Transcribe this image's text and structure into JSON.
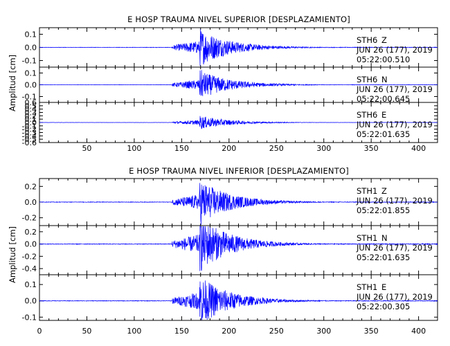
{
  "chart_data": [
    {
      "type": "line",
      "title": "E HOSP TRAUMA NIVEL SUPERIOR [DESPLAZAMIENTO]",
      "ylabel": "Amplitud [cm]",
      "xlim": [
        0,
        420
      ],
      "x_ticks": [
        "50",
        "100",
        "150",
        "200",
        "250",
        "300",
        "350",
        "400"
      ],
      "series_color": "#0000ff",
      "panels": [
        {
          "name": "STH6 Z",
          "station": "STH6",
          "component": "Z",
          "date": "JUN 26 (177), 2019",
          "time": "05:22:00.510",
          "ylim": [
            -0.15,
            0.15
          ],
          "y_ticks": [
            "0.1",
            "0.0",
            "-0.1"
          ],
          "onset_s": 140,
          "peak_s": 170,
          "peak_amplitude": 0.14
        },
        {
          "name": "STH6 N",
          "station": "STH6",
          "component": "N",
          "date": "JUN 26 (177), 2019",
          "time": "05:22:00.645",
          "ylim": [
            -0.15,
            0.15
          ],
          "y_ticks": [
            "0.1",
            "0.0",
            "-0.1"
          ],
          "onset_s": 140,
          "peak_s": 170,
          "peak_amplitude": 0.12
        },
        {
          "name": "STH6 E",
          "station": "STH6",
          "component": "E",
          "date": "JUN 26 (177), 2019",
          "time": "05:22:01.635",
          "ylim": [
            -0.6,
            0.6
          ],
          "y_ticks": [
            "0.6",
            "0.5",
            "0.4",
            "0.3",
            "0.2",
            "0.1",
            "0.0",
            "-0.1",
            "-0.2",
            "-0.3",
            "-0.4",
            "-0.5",
            "-0.6"
          ],
          "onset_s": 140,
          "peak_s": 170,
          "peak_amplitude": 0.2
        }
      ]
    },
    {
      "type": "line",
      "title": "E HOSP TRAUMA NIVEL INFERIOR [DESPLAZAMIENTO]",
      "ylabel": "Amplitud [cm]",
      "xlim": [
        0,
        420
      ],
      "x_ticks": [
        "0",
        "50",
        "100",
        "150",
        "200",
        "250",
        "300",
        "350",
        "400"
      ],
      "series_color": "#0000ff",
      "panels": [
        {
          "name": "STH1 Z",
          "station": "STH1",
          "component": "Z",
          "date": "JUN 26 (177), 2019",
          "time": "05:22:01.855",
          "ylim": [
            -0.3,
            0.3
          ],
          "y_ticks": [
            "0.2",
            "0.0",
            "-0.2"
          ],
          "onset_s": 140,
          "peak_s": 170,
          "peak_amplitude": 0.28
        },
        {
          "name": "STH1 N",
          "station": "STH1",
          "component": "N",
          "date": "JUN 26 (177), 2019",
          "time": "05:22:01.635",
          "ylim": [
            -0.5,
            0.3
          ],
          "y_ticks": [
            "0.2",
            "0.0",
            "-0.2",
            "-0.4"
          ],
          "onset_s": 140,
          "peak_s": 170,
          "peak_amplitude": 0.44
        },
        {
          "name": "STH1 E",
          "station": "STH1",
          "component": "E",
          "date": "JUN 26 (177), 2019",
          "time": "05:22:00.305",
          "ylim": [
            -0.12,
            0.16
          ],
          "y_ticks": [
            "0.1",
            "0.0",
            "-0.1"
          ],
          "onset_s": 140,
          "peak_s": 170,
          "peak_amplitude": 0.15
        }
      ]
    }
  ]
}
